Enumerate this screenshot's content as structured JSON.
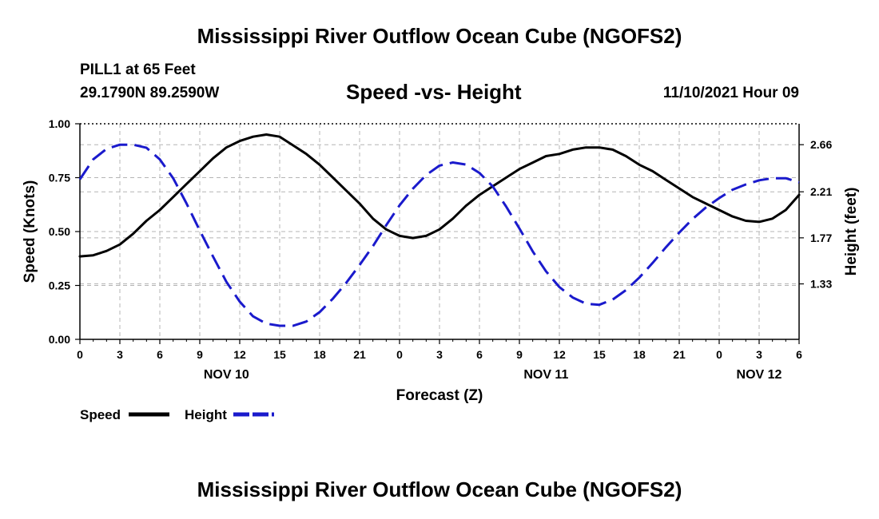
{
  "header": {
    "title": "Mississippi River Outflow Ocean Cube (NGOFS2)",
    "station": "PILL1 at 65 Feet",
    "coords": "29.1790N  89.2590W",
    "subtitle": "Speed -vs- Height",
    "datehour": "11/10/2021 Hour 09"
  },
  "footer": {
    "title": "Mississippi River Outflow Ocean Cube (NGOFS2)"
  },
  "colors": {
    "speed": "#000000",
    "height": "#1a1acc",
    "grid": "#b4b4b4"
  },
  "chart_data": {
    "type": "line",
    "xlabel": "Forecast (Z)",
    "ylabel": "Speed (Knots)",
    "y2label": "Height (feet)",
    "x_range_hours": [
      0,
      54
    ],
    "x_tick_hours": [
      0,
      3,
      6,
      9,
      12,
      15,
      18,
      21,
      24,
      27,
      30,
      33,
      36,
      39,
      42,
      45,
      48,
      51,
      54
    ],
    "x_tick_labels": [
      "0",
      "3",
      "6",
      "9",
      "12",
      "15",
      "18",
      "21",
      "0",
      "3",
      "6",
      "9",
      "12",
      "15",
      "18",
      "21",
      "0",
      "3",
      "6"
    ],
    "date_labels": [
      {
        "hour": 11,
        "label": "NOV 10"
      },
      {
        "hour": 35,
        "label": "NOV 11"
      },
      {
        "hour": 51,
        "label": "NOV 12"
      }
    ],
    "ylim": [
      0,
      1
    ],
    "y_ticks": [
      0,
      0.25,
      0.5,
      0.75,
      1.0
    ],
    "y_tick_labels": [
      "0.00",
      "0.25",
      "0.50",
      "0.75",
      "1.00"
    ],
    "y2lim": [
      0.8,
      2.86
    ],
    "y2_ticks": [
      1.33,
      1.77,
      2.21,
      2.66
    ],
    "y2_tick_labels": [
      "1.33",
      "1.77",
      "2.21",
      "2.66"
    ],
    "series": [
      {
        "name": "Speed",
        "axis": "left",
        "style": "solid",
        "x": [
          0,
          1,
          2,
          3,
          4,
          5,
          6,
          7,
          8,
          9,
          10,
          11,
          12,
          13,
          14,
          15,
          16,
          17,
          18,
          19,
          20,
          21,
          22,
          23,
          24,
          25,
          26,
          27,
          28,
          29,
          30,
          31,
          32,
          33,
          34,
          35,
          36,
          37,
          38,
          39,
          40,
          41,
          42,
          43,
          44,
          45,
          46,
          47,
          48,
          49,
          50,
          51,
          52,
          53,
          54
        ],
        "values": [
          0.385,
          0.39,
          0.41,
          0.44,
          0.49,
          0.55,
          0.6,
          0.66,
          0.72,
          0.78,
          0.84,
          0.89,
          0.92,
          0.94,
          0.95,
          0.94,
          0.9,
          0.86,
          0.81,
          0.75,
          0.69,
          0.63,
          0.56,
          0.51,
          0.48,
          0.47,
          0.48,
          0.51,
          0.56,
          0.62,
          0.67,
          0.71,
          0.75,
          0.79,
          0.82,
          0.85,
          0.86,
          0.88,
          0.89,
          0.89,
          0.88,
          0.85,
          0.81,
          0.78,
          0.74,
          0.7,
          0.66,
          0.63,
          0.6,
          0.57,
          0.55,
          0.545,
          0.56,
          0.6,
          0.67
        ]
      },
      {
        "name": "Height",
        "axis": "right",
        "style": "dashed",
        "x": [
          0,
          1,
          2,
          3,
          4,
          5,
          6,
          7,
          8,
          9,
          10,
          11,
          12,
          13,
          14,
          15,
          16,
          17,
          18,
          19,
          20,
          21,
          22,
          23,
          24,
          25,
          26,
          27,
          28,
          29,
          30,
          31,
          32,
          33,
          34,
          35,
          36,
          37,
          38,
          39,
          40,
          41,
          42,
          43,
          44,
          45,
          46,
          47,
          48,
          49,
          50,
          51,
          52,
          53,
          54
        ],
        "values": [
          2.33,
          2.52,
          2.62,
          2.66,
          2.66,
          2.63,
          2.52,
          2.34,
          2.1,
          1.84,
          1.59,
          1.35,
          1.16,
          1.02,
          0.95,
          0.93,
          0.93,
          0.97,
          1.06,
          1.19,
          1.34,
          1.51,
          1.69,
          1.89,
          2.08,
          2.24,
          2.37,
          2.46,
          2.49,
          2.47,
          2.39,
          2.26,
          2.07,
          1.86,
          1.64,
          1.45,
          1.3,
          1.2,
          1.14,
          1.13,
          1.18,
          1.27,
          1.39,
          1.53,
          1.68,
          1.82,
          1.95,
          2.06,
          2.15,
          2.23,
          2.28,
          2.32,
          2.34,
          2.34,
          2.3
        ]
      }
    ],
    "legend": [
      {
        "label": "Speed",
        "color": "#000000",
        "style": "solid"
      },
      {
        "label": "Height",
        "color": "#1a1acc",
        "style": "dashed"
      }
    ],
    "legend_placement": "bottom-left",
    "grid": true
  }
}
